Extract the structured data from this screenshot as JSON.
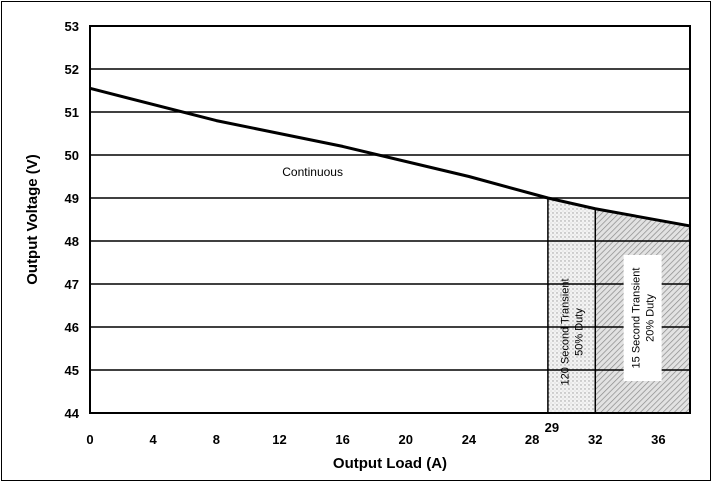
{
  "chart_data": {
    "type": "line",
    "xlabel": "Output Load (A)",
    "ylabel": "Output Voltage (V)",
    "xlim": [
      0,
      38
    ],
    "ylim": [
      44,
      53
    ],
    "x_ticks": [
      0,
      4,
      8,
      12,
      16,
      20,
      24,
      28,
      29,
      32,
      36
    ],
    "x_tick_labels": [
      "0",
      "4",
      "8",
      "12",
      "16",
      "20",
      "24",
      "28",
      "29",
      "32",
      "36"
    ],
    "y_ticks": [
      44,
      45,
      46,
      47,
      48,
      49,
      50,
      51,
      52,
      53
    ],
    "y_tick_labels": [
      "44",
      "45",
      "46",
      "47",
      "48",
      "49",
      "50",
      "51",
      "52",
      "53"
    ],
    "grid": "horizontal",
    "series": [
      {
        "x": [
          0,
          8,
          16,
          24,
          29,
          32,
          38
        ],
        "y": [
          51.55,
          50.8,
          50.2,
          49.5,
          49.0,
          48.75,
          48.35
        ]
      }
    ],
    "annotations": [
      {
        "text": "Continuous",
        "x": 14.1,
        "y": 49.6
      }
    ],
    "regions": [
      {
        "x0": 29,
        "x1": 32,
        "pattern": "dots",
        "lines": [
          "120 Second Transient",
          "50% Duty"
        ]
      },
      {
        "x0": 32,
        "x1": 38,
        "pattern": "hatch",
        "lines": [
          "15 Second Transient",
          "20% Duty"
        ]
      }
    ]
  }
}
